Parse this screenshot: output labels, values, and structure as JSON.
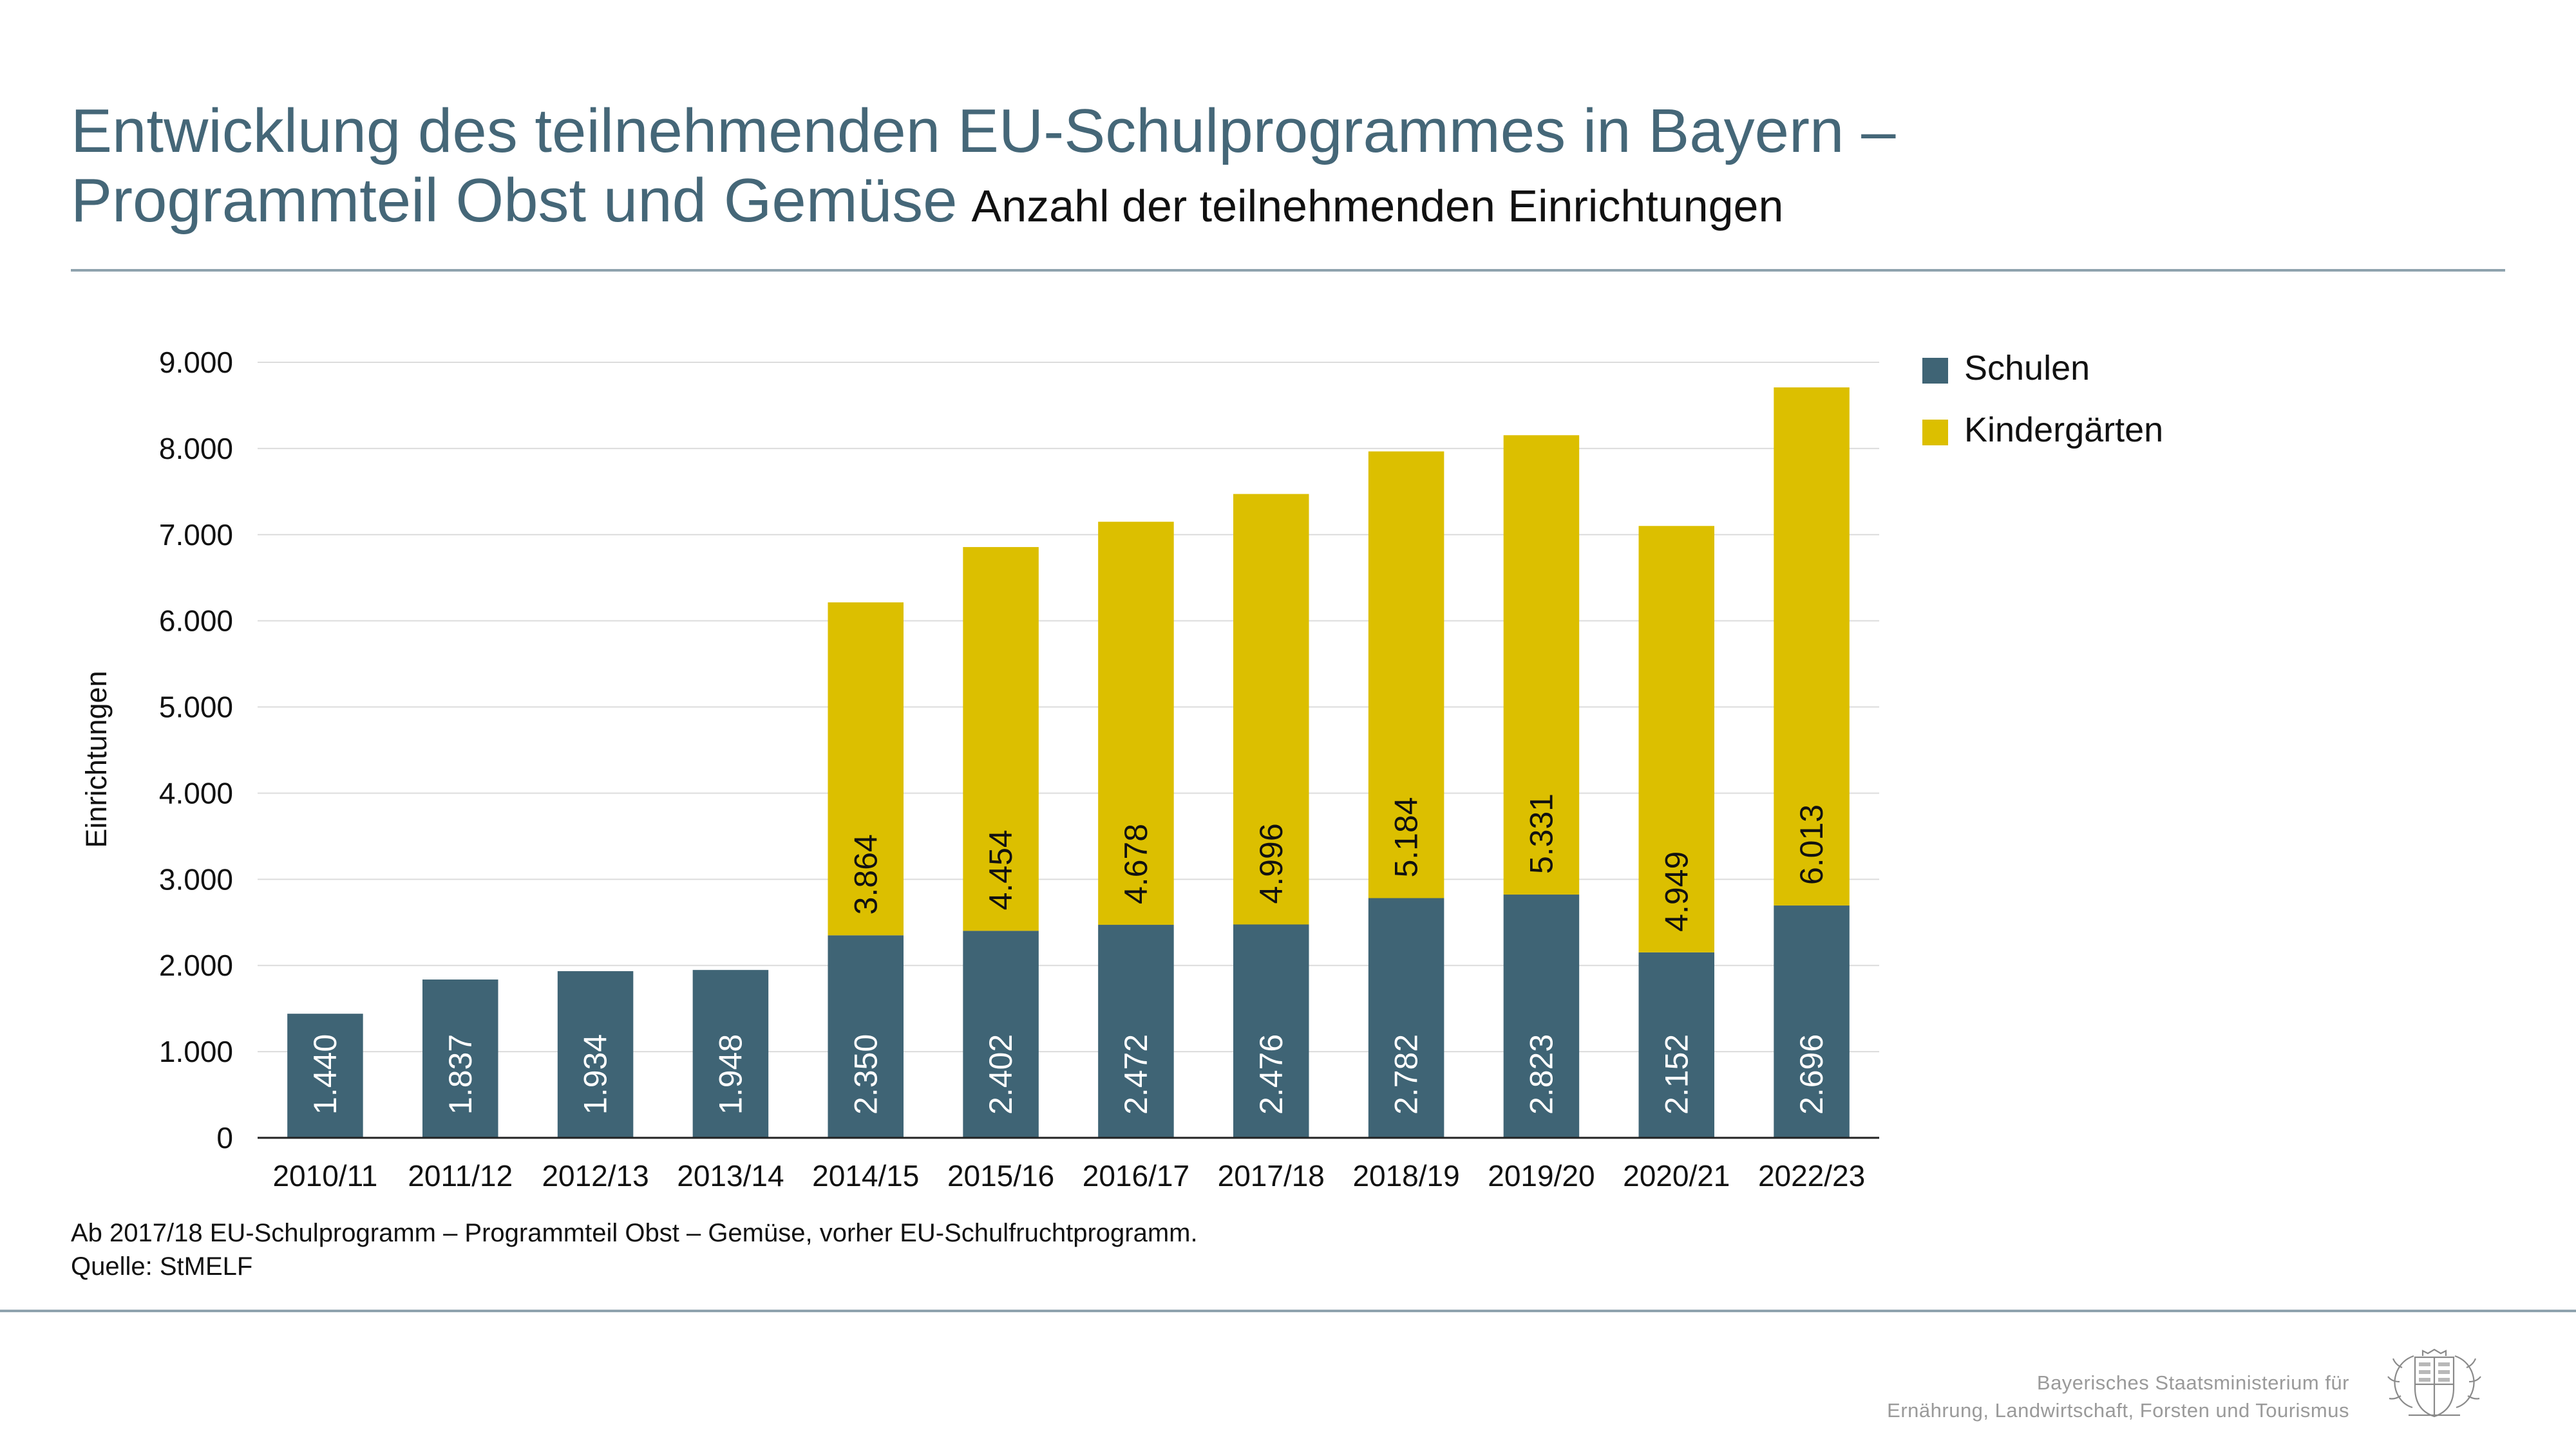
{
  "header": {
    "title_line1": "Entwicklung des teilnehmenden EU-Schulprogrammes in Bayern –",
    "title_line2": "Programmteil Obst und Gemüse",
    "subtitle": "Anzahl der teilnehmenden Einrichtungen"
  },
  "chart_data": {
    "type": "bar",
    "stacked": true,
    "categories": [
      "2010/11",
      "2011/12",
      "2012/13",
      "2013/14",
      "2014/15",
      "2015/16",
      "2016/17",
      "2017/18",
      "2018/19",
      "2019/20",
      "2020/21",
      "2022/23"
    ],
    "series": [
      {
        "name": "Schulen",
        "color": "#3f6475",
        "values": [
          1440,
          1837,
          1934,
          1948,
          2350,
          2402,
          2472,
          2476,
          2782,
          2823,
          2152,
          2696
        ],
        "labels": [
          "1.440",
          "1.837",
          "1.934",
          "1.948",
          "2.350",
          "2.402",
          "2.472",
          "2.476",
          "2.782",
          "2.823",
          "2.152",
          "2.696"
        ]
      },
      {
        "name": "Kindergärten",
        "color": "#dcbf00",
        "values": [
          null,
          null,
          null,
          null,
          3864,
          4454,
          4678,
          4996,
          5184,
          5331,
          4949,
          6013
        ],
        "labels": [
          "",
          "",
          "",
          "",
          "3.864",
          "4.454",
          "4.678",
          "4.996",
          "5.184",
          "5.331",
          "4.949",
          "6.013"
        ]
      }
    ],
    "ylabel": "Einrichtungen",
    "xlabel": "",
    "ylim": [
      0,
      9000
    ],
    "yticks": [
      0,
      1000,
      2000,
      3000,
      4000,
      5000,
      6000,
      7000,
      8000,
      9000
    ],
    "ytick_labels": [
      "0",
      "1.000",
      "2.000",
      "3.000",
      "4.000",
      "5.000",
      "6.000",
      "7.000",
      "8.000",
      "9.000"
    ],
    "grid": true,
    "legend_position": "right-top",
    "label_orientation": "vertical"
  },
  "footnote": {
    "line1": "Ab 2017/18 EU-Schulprogramm – Programmteil Obst – Gemüse, vorher EU-Schulfruchtprogramm.",
    "line2": "Quelle: StMELF"
  },
  "ministry": {
    "line1": "Bayerisches Staatsministerium für",
    "line2": "Ernährung, Landwirtschaft, Forsten und Tourismus",
    "crest_icon": "bavarian-coat-of-arms-icon"
  }
}
